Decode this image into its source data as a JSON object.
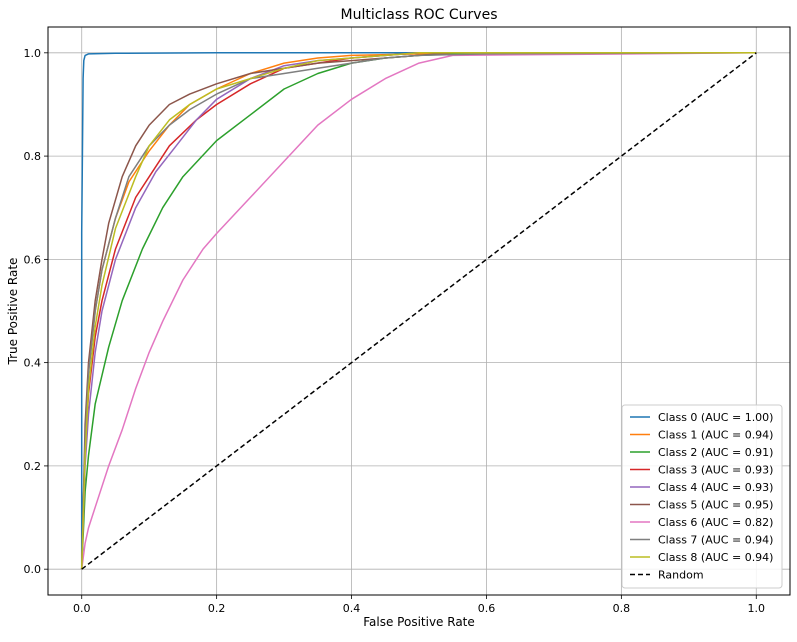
{
  "chart_data": {
    "type": "line",
    "title": "Multiclass ROC Curves",
    "xlabel": "False Positive Rate",
    "ylabel": "True Positive Rate",
    "xlim": [
      -0.05,
      1.05
    ],
    "ylim": [
      -0.05,
      1.05
    ],
    "xticks": [
      "0.0",
      "0.2",
      "0.4",
      "0.6",
      "0.8",
      "1.0"
    ],
    "yticks": [
      "0.0",
      "0.2",
      "0.4",
      "0.6",
      "0.8",
      "1.0"
    ],
    "grid": true,
    "legend_position": "lower-right",
    "series": [
      {
        "name": "Class 0 (AUC = 1.00)",
        "color": "#1f77b4",
        "style": "solid",
        "x": [
          0,
          0,
          0.002,
          0.003,
          0.005,
          0.01,
          0.05,
          0.2,
          1.0
        ],
        "y": [
          0,
          0.65,
          0.95,
          0.985,
          0.995,
          0.998,
          0.999,
          1.0,
          1.0
        ]
      },
      {
        "name": "Class 1 (AUC = 0.94)",
        "color": "#ff7f0e",
        "style": "solid",
        "x": [
          0,
          0.005,
          0.01,
          0.02,
          0.03,
          0.05,
          0.07,
          0.1,
          0.13,
          0.16,
          0.2,
          0.25,
          0.3,
          0.35,
          0.4,
          0.5,
          0.6,
          1.0
        ],
        "y": [
          0,
          0.25,
          0.38,
          0.5,
          0.58,
          0.68,
          0.75,
          0.81,
          0.86,
          0.9,
          0.93,
          0.96,
          0.98,
          0.99,
          0.995,
          0.998,
          1.0,
          1.0
        ]
      },
      {
        "name": "Class 2 (AUC = 0.91)",
        "color": "#2ca02c",
        "style": "solid",
        "x": [
          0,
          0.005,
          0.01,
          0.02,
          0.04,
          0.06,
          0.09,
          0.12,
          0.15,
          0.2,
          0.25,
          0.3,
          0.35,
          0.4,
          0.45,
          0.5,
          0.6,
          1.0
        ],
        "y": [
          0,
          0.15,
          0.22,
          0.32,
          0.43,
          0.52,
          0.62,
          0.7,
          0.76,
          0.83,
          0.88,
          0.93,
          0.96,
          0.98,
          0.99,
          0.995,
          1.0,
          1.0
        ]
      },
      {
        "name": "Class 3 (AUC = 0.93)",
        "color": "#d62728",
        "style": "solid",
        "x": [
          0,
          0.005,
          0.01,
          0.02,
          0.03,
          0.05,
          0.08,
          0.1,
          0.13,
          0.17,
          0.2,
          0.25,
          0.3,
          0.35,
          0.4,
          0.5,
          1.0
        ],
        "y": [
          0,
          0.22,
          0.34,
          0.45,
          0.52,
          0.62,
          0.72,
          0.76,
          0.82,
          0.87,
          0.9,
          0.94,
          0.97,
          0.98,
          0.99,
          1.0,
          1.0
        ]
      },
      {
        "name": "Class 4 (AUC = 0.93)",
        "color": "#9467bd",
        "style": "solid",
        "x": [
          0,
          0.005,
          0.01,
          0.02,
          0.03,
          0.05,
          0.08,
          0.11,
          0.14,
          0.17,
          0.2,
          0.25,
          0.3,
          0.35,
          0.4,
          0.5,
          1.0
        ],
        "y": [
          0,
          0.2,
          0.3,
          0.42,
          0.5,
          0.6,
          0.7,
          0.77,
          0.82,
          0.87,
          0.91,
          0.95,
          0.975,
          0.985,
          0.99,
          1.0,
          1.0
        ]
      },
      {
        "name": "Class 5 (AUC = 0.95)",
        "color": "#8c564b",
        "style": "solid",
        "x": [
          0,
          0.005,
          0.01,
          0.02,
          0.03,
          0.04,
          0.06,
          0.08,
          0.1,
          0.13,
          0.16,
          0.2,
          0.25,
          0.3,
          0.35,
          0.4,
          0.5,
          0.55,
          1.0
        ],
        "y": [
          0,
          0.28,
          0.4,
          0.52,
          0.6,
          0.67,
          0.76,
          0.82,
          0.86,
          0.9,
          0.92,
          0.94,
          0.96,
          0.97,
          0.98,
          0.985,
          0.995,
          1.0,
          1.0
        ]
      },
      {
        "name": "Class 6 (AUC = 0.82)",
        "color": "#e377c2",
        "style": "solid",
        "x": [
          0,
          0.005,
          0.01,
          0.02,
          0.04,
          0.06,
          0.08,
          0.1,
          0.12,
          0.15,
          0.18,
          0.2,
          0.25,
          0.3,
          0.35,
          0.4,
          0.45,
          0.5,
          0.55,
          1.0
        ],
        "y": [
          0,
          0.05,
          0.08,
          0.12,
          0.2,
          0.27,
          0.35,
          0.42,
          0.48,
          0.56,
          0.62,
          0.65,
          0.72,
          0.79,
          0.86,
          0.91,
          0.95,
          0.98,
          0.995,
          1.0
        ]
      },
      {
        "name": "Class 7 (AUC = 0.94)",
        "color": "#7f7f7f",
        "style": "solid",
        "x": [
          0,
          0.005,
          0.01,
          0.02,
          0.03,
          0.05,
          0.07,
          0.1,
          0.13,
          0.16,
          0.2,
          0.25,
          0.3,
          0.35,
          0.4,
          0.45,
          0.5,
          0.6,
          1.0
        ],
        "y": [
          0,
          0.25,
          0.38,
          0.5,
          0.58,
          0.68,
          0.76,
          0.82,
          0.86,
          0.89,
          0.92,
          0.95,
          0.96,
          0.97,
          0.98,
          0.99,
          0.995,
          0.998,
          1.0
        ]
      },
      {
        "name": "Class 8 (AUC = 0.94)",
        "color": "#bcbd22",
        "style": "solid",
        "x": [
          0,
          0.005,
          0.01,
          0.02,
          0.03,
          0.05,
          0.08,
          0.1,
          0.13,
          0.16,
          0.2,
          0.25,
          0.3,
          0.35,
          0.4,
          0.45,
          0.5,
          1.0
        ],
        "y": [
          0,
          0.22,
          0.35,
          0.47,
          0.55,
          0.66,
          0.76,
          0.82,
          0.87,
          0.9,
          0.93,
          0.95,
          0.97,
          0.985,
          0.99,
          0.995,
          1.0,
          1.0
        ]
      },
      {
        "name": "Random",
        "color": "#000000",
        "style": "dashed",
        "x": [
          0,
          1
        ],
        "y": [
          0,
          1
        ]
      }
    ]
  }
}
